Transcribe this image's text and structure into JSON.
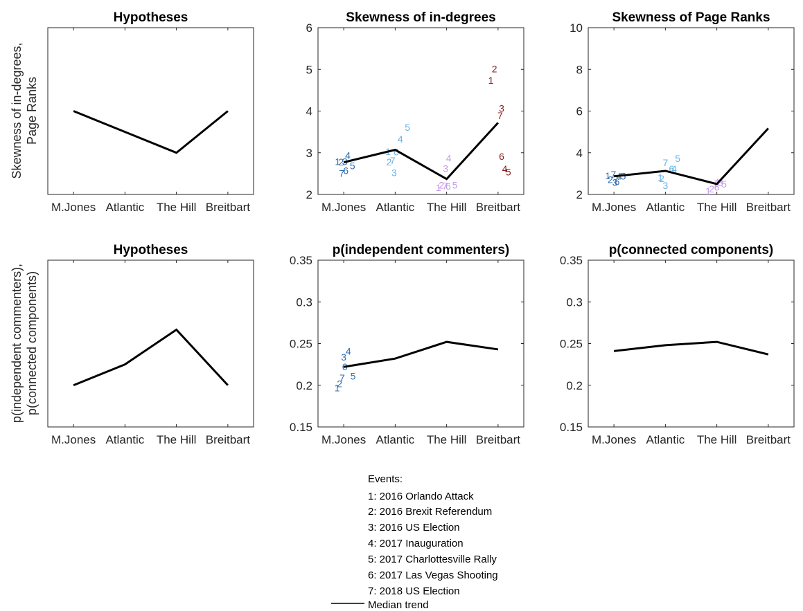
{
  "colors": {
    "M.Jones": "#2e6db0",
    "Atlantic": "#6ab4e8",
    "The Hill": "#c59be6",
    "Breitbart": "#8b1a1a",
    "trend": "#000000"
  },
  "legend": {
    "title": "Events:",
    "items": [
      "1: 2016 Orlando Attack",
      "2: 2016 Brexit Referendum",
      "3: 2016 US Election",
      "4: 2017 Inauguration",
      "5: 2017 Charlottesville Rally",
      "6: 2017 Las Vegas Shooting",
      "7: 2018 US Election"
    ],
    "trend_label": "Median trend"
  },
  "row_labels": [
    [
      "Skewness of in-degrees,",
      "Page Ranks"
    ],
    [
      "p(independent commenters),",
      "p(connected components)"
    ]
  ],
  "chart_data": [
    {
      "type": "line",
      "title": "Hypotheses",
      "categories": [
        "M.Jones",
        "Atlantic",
        "The Hill",
        "Breitbart"
      ],
      "trend": [
        0.6,
        0.45,
        0.3,
        0.6
      ],
      "ylim": [
        0,
        1.2
      ],
      "yticks": []
    },
    {
      "type": "scatter",
      "title": "Skewness of in-degrees",
      "categories": [
        "M.Jones",
        "Atlantic",
        "The Hill",
        "Breitbart"
      ],
      "ylim": [
        2,
        6
      ],
      "yticks": [
        2,
        3,
        4,
        5,
        6
      ],
      "trend": [
        2.77,
        3.07,
        2.37,
        3.72
      ],
      "points": [
        {
          "cat": 0,
          "x": 0.88,
          "y": 2.79,
          "label": "1"
        },
        {
          "cat": 0,
          "x": 0.95,
          "y": 2.78,
          "label": "2"
        },
        {
          "cat": 0,
          "x": 1.02,
          "y": 2.79,
          "label": "3"
        },
        {
          "cat": 0,
          "x": 1.08,
          "y": 2.94,
          "label": "4"
        },
        {
          "cat": 0,
          "x": 1.17,
          "y": 2.69,
          "label": "5"
        },
        {
          "cat": 0,
          "x": 1.04,
          "y": 2.57,
          "label": "6"
        },
        {
          "cat": 0,
          "x": 0.96,
          "y": 2.51,
          "label": "7"
        },
        {
          "cat": 1,
          "x": 1.86,
          "y": 3.03,
          "label": "1"
        },
        {
          "cat": 1,
          "x": 1.88,
          "y": 2.78,
          "label": "2"
        },
        {
          "cat": 1,
          "x": 1.98,
          "y": 2.52,
          "label": "3"
        },
        {
          "cat": 1,
          "x": 2.1,
          "y": 3.33,
          "label": "4"
        },
        {
          "cat": 1,
          "x": 2.24,
          "y": 3.61,
          "label": "5"
        },
        {
          "cat": 1,
          "x": 2.02,
          "y": 3.02,
          "label": "6"
        },
        {
          "cat": 1,
          "x": 1.95,
          "y": 2.81,
          "label": "7"
        },
        {
          "cat": 2,
          "x": 2.84,
          "y": 2.17,
          "label": "1"
        },
        {
          "cat": 2,
          "x": 2.9,
          "y": 2.22,
          "label": "2"
        },
        {
          "cat": 2,
          "x": 2.98,
          "y": 2.62,
          "label": "3"
        },
        {
          "cat": 2,
          "x": 3.04,
          "y": 2.87,
          "label": "4"
        },
        {
          "cat": 2,
          "x": 3.16,
          "y": 2.22,
          "label": "5"
        },
        {
          "cat": 2,
          "x": 3.03,
          "y": 2.2,
          "label": "6"
        },
        {
          "cat": 2,
          "x": 2.97,
          "y": 2.21,
          "label": "7"
        },
        {
          "cat": 3,
          "x": 3.86,
          "y": 4.74,
          "label": "1"
        },
        {
          "cat": 3,
          "x": 3.93,
          "y": 5.01,
          "label": "2"
        },
        {
          "cat": 3,
          "x": 4.07,
          "y": 4.07,
          "label": "3"
        },
        {
          "cat": 3,
          "x": 4.13,
          "y": 2.61,
          "label": "4"
        },
        {
          "cat": 3,
          "x": 4.2,
          "y": 2.54,
          "label": "5"
        },
        {
          "cat": 3,
          "x": 4.07,
          "y": 2.91,
          "label": "6"
        },
        {
          "cat": 3,
          "x": 4.04,
          "y": 3.89,
          "label": "7"
        }
      ]
    },
    {
      "type": "scatter",
      "title": "Skewness of Page Ranks",
      "categories": [
        "M.Jones",
        "Atlantic",
        "The Hill",
        "Breitbart"
      ],
      "ylim": [
        2,
        10
      ],
      "yticks": [
        2,
        4,
        6,
        8,
        10
      ],
      "trend": [
        2.87,
        3.13,
        2.5,
        5.17
      ],
      "points": [
        {
          "cat": 0,
          "x": 0.88,
          "y": 2.89,
          "label": "1"
        },
        {
          "cat": 0,
          "x": 0.93,
          "y": 2.72,
          "label": "2"
        },
        {
          "cat": 0,
          "x": 1.02,
          "y": 2.58,
          "label": "3"
        },
        {
          "cat": 0,
          "x": 1.1,
          "y": 2.88,
          "label": "4"
        },
        {
          "cat": 0,
          "x": 1.18,
          "y": 2.88,
          "label": "5"
        },
        {
          "cat": 0,
          "x": 1.06,
          "y": 2.61,
          "label": "6"
        },
        {
          "cat": 0,
          "x": 0.99,
          "y": 2.97,
          "label": "7"
        },
        {
          "cat": 1,
          "x": 1.9,
          "y": 2.81,
          "label": "1"
        },
        {
          "cat": 1,
          "x": 1.93,
          "y": 2.77,
          "label": "2"
        },
        {
          "cat": 1,
          "x": 2.0,
          "y": 2.43,
          "label": "3"
        },
        {
          "cat": 1,
          "x": 2.17,
          "y": 3.23,
          "label": "4"
        },
        {
          "cat": 1,
          "x": 2.24,
          "y": 3.73,
          "label": "5"
        },
        {
          "cat": 1,
          "x": 2.12,
          "y": 3.23,
          "label": "6"
        },
        {
          "cat": 1,
          "x": 2.0,
          "y": 3.52,
          "label": "7"
        },
        {
          "cat": 2,
          "x": 2.83,
          "y": 2.17,
          "label": "1"
        },
        {
          "cat": 2,
          "x": 2.9,
          "y": 2.26,
          "label": "2"
        },
        {
          "cat": 2,
          "x": 3.07,
          "y": 2.56,
          "label": "3"
        },
        {
          "cat": 2,
          "x": 3.0,
          "y": 2.6,
          "label": "4"
        },
        {
          "cat": 2,
          "x": 3.14,
          "y": 2.5,
          "label": "5"
        },
        {
          "cat": 2,
          "x": 3.0,
          "y": 2.35,
          "label": "6"
        },
        {
          "cat": 2,
          "x": 2.99,
          "y": 2.51,
          "label": "7"
        }
      ]
    },
    {
      "type": "line",
      "title": "Hypotheses",
      "categories": [
        "M.Jones",
        "Atlantic",
        "The Hill",
        "Breitbart"
      ],
      "trend": [
        0.3,
        0.45,
        0.7,
        0.3
      ],
      "ylim": [
        0,
        1.2
      ],
      "yticks": []
    },
    {
      "type": "scatter",
      "title": "p(independent commenters)",
      "categories": [
        "M.Jones",
        "Atlantic",
        "The Hill",
        "Breitbart"
      ],
      "ylim": [
        0.15,
        0.35
      ],
      "yticks": [
        0.15,
        0.2,
        0.25,
        0.3,
        0.35
      ],
      "trend": [
        0.222,
        0.232,
        0.252,
        0.243
      ],
      "points": [
        {
          "cat": 0,
          "x": 0.87,
          "y": 0.197,
          "label": "1"
        },
        {
          "cat": 0,
          "x": 0.92,
          "y": 0.202,
          "label": "2"
        },
        {
          "cat": 0,
          "x": 1.0,
          "y": 0.234,
          "label": "3"
        },
        {
          "cat": 0,
          "x": 1.09,
          "y": 0.241,
          "label": "4"
        },
        {
          "cat": 0,
          "x": 1.18,
          "y": 0.211,
          "label": "5"
        },
        {
          "cat": 0,
          "x": 1.02,
          "y": 0.222,
          "label": "6"
        },
        {
          "cat": 0,
          "x": 0.97,
          "y": 0.209,
          "label": "7"
        }
      ]
    },
    {
      "type": "scatter",
      "title": "p(connected components)",
      "categories": [
        "M.Jones",
        "Atlantic",
        "The Hill",
        "Breitbart"
      ],
      "ylim": [
        0.15,
        0.35
      ],
      "yticks": [
        0.15,
        0.2,
        0.25,
        0.3,
        0.35
      ],
      "trend": [
        0.241,
        0.248,
        0.252,
        0.237
      ],
      "points": []
    }
  ]
}
